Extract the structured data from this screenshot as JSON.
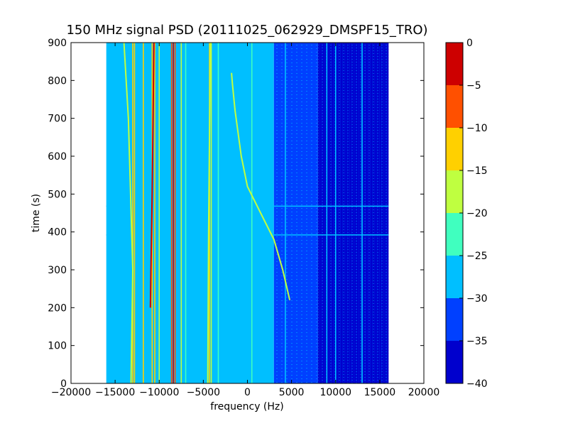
{
  "chart_data": {
    "type": "heatmap",
    "title": "150 MHz signal PSD (20111025_062929_DMSPF15_TRO)",
    "xlabel": "frequency (Hz)",
    "ylabel": "time (s)",
    "xlim": [
      -20000,
      20000
    ],
    "ylim": [
      0,
      900
    ],
    "x_ticks": [
      -20000,
      -15000,
      -10000,
      -5000,
      0,
      5000,
      10000,
      15000,
      20000
    ],
    "x_tick_labels": [
      "−20000",
      "−15000",
      "−10000",
      "−5000",
      "0",
      "5000",
      "10000",
      "15000",
      "20000"
    ],
    "y_ticks": [
      0,
      100,
      200,
      300,
      400,
      500,
      600,
      700,
      800,
      900
    ],
    "y_tick_labels": [
      "0",
      "100",
      "200",
      "300",
      "400",
      "500",
      "600",
      "700",
      "800",
      "900"
    ],
    "data_extent_x": [
      -16000,
      16000
    ],
    "data_extent_y": [
      0,
      900
    ],
    "colorbar": {
      "levels": [
        -40,
        -35,
        -30,
        -25,
        -20,
        -15,
        -10,
        -5,
        0
      ],
      "tick_labels": [
        "−40",
        "−35",
        "−30",
        "−25",
        "−20",
        "−15",
        "−10",
        "−5",
        "0"
      ],
      "colors": [
        "#0000cd",
        "#0040ff",
        "#00bfff",
        "#40ffbf",
        "#bfff40",
        "#ffd000",
        "#ff5000",
        "#cd0000"
      ]
    },
    "background_level_db": [
      {
        "x_range": [
          -16000,
          3000
        ],
        "level": -27
      },
      {
        "x_range": [
          3000,
          8000
        ],
        "level": -32
      },
      {
        "x_range": [
          8000,
          16000
        ],
        "level": -36
      }
    ],
    "constant_lines": [
      {
        "freq_hz": -13000,
        "level": -15
      },
      {
        "freq_hz": -12800,
        "level": -12
      },
      {
        "freq_hz": -11800,
        "level": -14
      },
      {
        "freq_hz": -10800,
        "level": -14
      },
      {
        "freq_hz": -10500,
        "level": -12
      },
      {
        "freq_hz": -10000,
        "level": -18
      },
      {
        "freq_hz": -8600,
        "level": -8
      },
      {
        "freq_hz": -8400,
        "level": -3
      },
      {
        "freq_hz": -8200,
        "level": -8
      },
      {
        "freq_hz": -7500,
        "level": -20
      },
      {
        "freq_hz": -7000,
        "level": -22
      },
      {
        "freq_hz": -4300,
        "level": -14
      },
      {
        "freq_hz": -4100,
        "level": -18
      },
      {
        "freq_hz": -3300,
        "level": -22
      },
      {
        "freq_hz": 500,
        "level": -22
      },
      {
        "freq_hz": 4300,
        "level": -27
      },
      {
        "freq_hz": 9000,
        "level": -27
      },
      {
        "freq_hz": 10000,
        "level": -27
      },
      {
        "freq_hz": 13000,
        "level": -27
      }
    ],
    "drifting_lines": [
      {
        "level": -18,
        "points": [
          [
            -13200,
            0
          ],
          [
            -13000,
            300
          ],
          [
            -13500,
            700
          ],
          [
            -14000,
            900
          ]
        ]
      },
      {
        "level": -3,
        "points": [
          [
            -11000,
            200
          ],
          [
            -10800,
            500
          ],
          [
            -10600,
            900
          ]
        ]
      },
      {
        "level": -20,
        "points": [
          [
            -4500,
            0
          ],
          [
            -4400,
            400
          ],
          [
            -4200,
            900
          ]
        ]
      },
      {
        "level": -20,
        "points": [
          [
            4800,
            220
          ],
          [
            4000,
            300
          ],
          [
            3000,
            380
          ],
          [
            1500,
            450
          ],
          [
            0,
            520
          ],
          [
            -700,
            600
          ],
          [
            -1400,
            720
          ],
          [
            -1700,
            790
          ],
          [
            -1800,
            820
          ]
        ]
      }
    ],
    "horizontal_interference": [
      {
        "time_s": 392,
        "x_range": [
          -16000,
          16000
        ],
        "level": -26
      },
      {
        "time_s": 468,
        "x_range": [
          -16000,
          16000
        ],
        "level": -26
      }
    ]
  }
}
